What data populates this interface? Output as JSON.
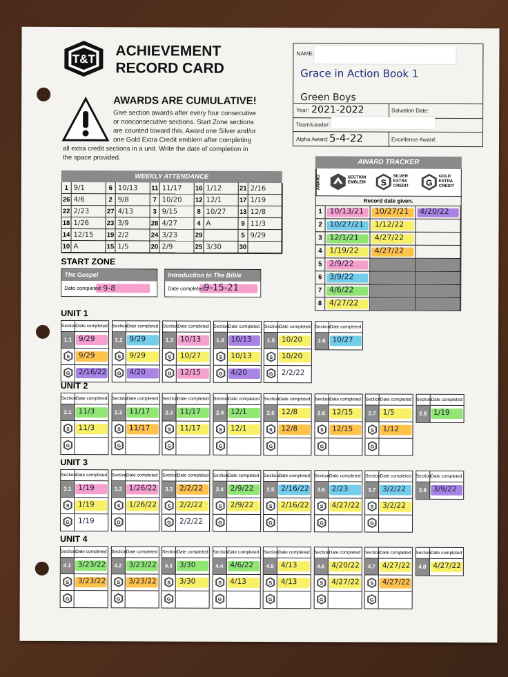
{
  "header": {
    "logo_text": "T&T",
    "title_line1": "ACHIEVEMENT",
    "title_line2": "RECORD CARD"
  },
  "name_box": {
    "name_label": "NAME:",
    "book": "Grace in Action  Book 1",
    "group": "Green Boys",
    "year_label": "Year:",
    "year_value": "2021-2022",
    "salvation_label": "Salvation Date:",
    "team_label": "Team/Leader:",
    "alpha_label": "Alpha Award:",
    "alpha_value": "5-4-22",
    "excellence_label": "Excellence Award:"
  },
  "cumulative": {
    "title": "AWARDS ARE CUMULATIVE!",
    "lines": [
      "Give section awards after every four consecutive",
      "or nonconsecutive sections. Start Zone sections",
      "are counted toward this. Award one Silver and/or",
      "one Gold Extra Credit emblem after completing",
      "all extra credit sections in a unit. Write the date of completion in",
      "the space provided."
    ]
  },
  "weekly_attendance": {
    "title": "WEEKLY ATTENDANCE",
    "rows": [
      [
        [
          "1",
          "9/1"
        ],
        [
          "6",
          "10/13"
        ],
        [
          "11",
          "11/17"
        ],
        [
          "16",
          "1/12"
        ],
        [
          "21",
          "2/16"
        ],
        [
          "26",
          "4/6"
        ]
      ],
      [
        [
          "2",
          "9/8"
        ],
        [
          "7",
          "10/20"
        ],
        [
          "12",
          "12/1"
        ],
        [
          "17",
          "1/19"
        ],
        [
          "22",
          "2/23"
        ],
        [
          "27",
          "4/13"
        ]
      ],
      [
        [
          "3",
          "9/15"
        ],
        [
          "8",
          "10/27"
        ],
        [
          "13",
          "12/8"
        ],
        [
          "18",
          "1/26"
        ],
        [
          "23",
          "3/9"
        ],
        [
          "28",
          "4/27"
        ]
      ],
      [
        [
          "4",
          "A"
        ],
        [
          "9",
          "11/3"
        ],
        [
          "14",
          "12/15"
        ],
        [
          "19",
          "2/2"
        ],
        [
          "24",
          "3/23"
        ],
        [
          "29",
          ""
        ]
      ],
      [
        [
          "5",
          "9/29"
        ],
        [
          "10",
          "A"
        ],
        [
          "15",
          "1/5"
        ],
        [
          "20",
          "2/9"
        ],
        [
          "25",
          "3/30"
        ],
        [
          "30",
          ""
        ]
      ]
    ]
  },
  "award_tracker": {
    "title": "AWARD TRACKER",
    "side_label": "AWARD",
    "col1": "SECTION EMBLEM",
    "col2": "SILVER EXTRA CREDIT",
    "col3": "GOLD EXTRA CREDIT",
    "record_label": "Record date given.",
    "rows": [
      {
        "n": "1",
        "a": "10/13/21",
        "b": "10/27/21",
        "c": "4/20/22"
      },
      {
        "n": "2",
        "a": "10/27/21",
        "b": "1/12/22",
        "c": ""
      },
      {
        "n": "3",
        "a": "12/1/21",
        "b": "4/27/22",
        "c": ""
      },
      {
        "n": "4",
        "a": "1/19/22",
        "b": "4/27/22",
        "c": ""
      },
      {
        "n": "5",
        "a": "2/9/22",
        "b": "",
        "c": ""
      },
      {
        "n": "6",
        "a": "3/9/22",
        "b": "",
        "c": ""
      },
      {
        "n": "7",
        "a": "4/6/22",
        "b": "",
        "c": ""
      },
      {
        "n": "8",
        "a": "4/27/22",
        "b": "",
        "c": ""
      }
    ]
  },
  "start_zone": {
    "title": "START ZONE",
    "boxes": [
      {
        "name": "The Gospel",
        "label": "Date completed:",
        "value": "9-8"
      },
      {
        "name": "Introduction to The Bible",
        "label": "Date completed:",
        "value": "9-15-21"
      }
    ]
  },
  "labels": {
    "section": "Section",
    "date_completed": "Date completed"
  },
  "units": [
    {
      "title": "UNIT 1",
      "sections": [
        {
          "num": "1.1",
          "d": "9/29",
          "s": "9/29",
          "g": "2/16/22"
        },
        {
          "num": "1.2",
          "d": "9/29",
          "s": "9/29",
          "g": "4/20"
        },
        {
          "num": "1.3",
          "d": "10/13",
          "s": "10/27",
          "g": "12/15"
        },
        {
          "num": "1.4",
          "d": "10/13",
          "s": "10/13",
          "g": "4/20"
        },
        {
          "num": "1.5",
          "d": "10/20",
          "s": "10/20",
          "g": "2/2/22"
        },
        {
          "num": "1.6",
          "d": "10/27",
          "s": null,
          "g": null
        }
      ]
    },
    {
      "title": "UNIT 2",
      "sections": [
        {
          "num": "2.1",
          "d": "11/3",
          "s": "11/3",
          "g": ""
        },
        {
          "num": "2.2",
          "d": "11/17",
          "s": "11/17",
          "g": ""
        },
        {
          "num": "2.3",
          "d": "11/17",
          "s": "11/17",
          "g": ""
        },
        {
          "num": "2.4",
          "d": "12/1",
          "s": "12/1",
          "g": ""
        },
        {
          "num": "2.5",
          "d": "12/8",
          "s": "12/8",
          "g": ""
        },
        {
          "num": "2.6",
          "d": "12/15",
          "s": "12/15",
          "g": ""
        },
        {
          "num": "2.7",
          "d": "1/5",
          "s": "1/12",
          "g": ""
        },
        {
          "num": "2.8",
          "d": "1/19",
          "s": null,
          "g": null
        }
      ]
    },
    {
      "title": "UNIT 3",
      "sections": [
        {
          "num": "3.1",
          "d": "1/19",
          "s": "1/19",
          "g": "1/19"
        },
        {
          "num": "3.2",
          "d": "1/26/22",
          "s": "1/26/22",
          "g": ""
        },
        {
          "num": "3.3",
          "d": "2/2/22",
          "s": "2/2/22",
          "g": "2/2/22"
        },
        {
          "num": "3.4",
          "d": "2/9/22",
          "s": "2/9/22",
          "g": ""
        },
        {
          "num": "3.5",
          "d": "2/16/22",
          "s": "2/16/22",
          "g": ""
        },
        {
          "num": "3.6",
          "d": "2/23",
          "s": "4/27/22",
          "g": ""
        },
        {
          "num": "3.7",
          "d": "3/2/22",
          "s": "3/2/22",
          "g": ""
        },
        {
          "num": "3.8",
          "d": "3/9/22",
          "s": null,
          "g": null
        }
      ]
    },
    {
      "title": "UNIT 4",
      "sections": [
        {
          "num": "4.1",
          "d": "3/23/22",
          "s": "3/23/22",
          "g": ""
        },
        {
          "num": "4.2",
          "d": "3/23/22",
          "s": "3/23/22",
          "g": ""
        },
        {
          "num": "4.3",
          "d": "3/30",
          "s": "3/30",
          "g": ""
        },
        {
          "num": "4.4",
          "d": "4/6/22",
          "s": "4/13",
          "g": ""
        },
        {
          "num": "4.5",
          "d": "4/13",
          "s": "4/13",
          "g": ""
        },
        {
          "num": "4.6",
          "d": "4/20/22",
          "s": "4/27/22",
          "g": ""
        },
        {
          "num": "4.7",
          "d": "4/27/22",
          "s": "4/27/22",
          "g": ""
        },
        {
          "num": "4.8",
          "d": "4/27/22",
          "s": null,
          "g": null
        }
      ]
    }
  ],
  "colors": {
    "pink": "#f48fc4",
    "green": "#7ee05a",
    "yellow": "#f7ef4a",
    "orange": "#ffb92a",
    "purple": "#9b6ee0",
    "blue": "#5cc6e6"
  }
}
